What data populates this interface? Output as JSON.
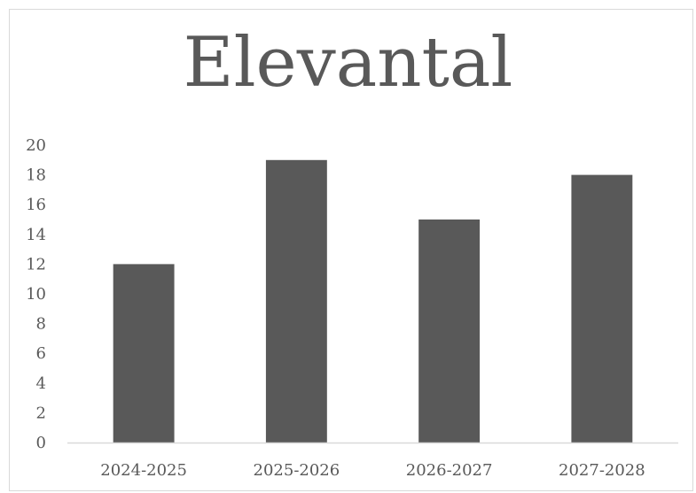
{
  "chart_data": {
    "type": "bar",
    "title": "Elevantal",
    "xlabel": "",
    "ylabel": "",
    "categories": [
      "2024-2025",
      "2025-2026",
      "2026-2027",
      "2027-2028"
    ],
    "values": [
      12,
      19,
      15,
      18
    ],
    "yticks": [
      "0",
      "2",
      "4",
      "6",
      "8",
      "10",
      "12",
      "14",
      "16",
      "18",
      "20"
    ],
    "ylim": [
      0,
      20
    ],
    "grid": false,
    "legend": "none",
    "colors": {
      "bar": "#595959",
      "axis": "#d9d9d9",
      "text": "#595959"
    }
  }
}
